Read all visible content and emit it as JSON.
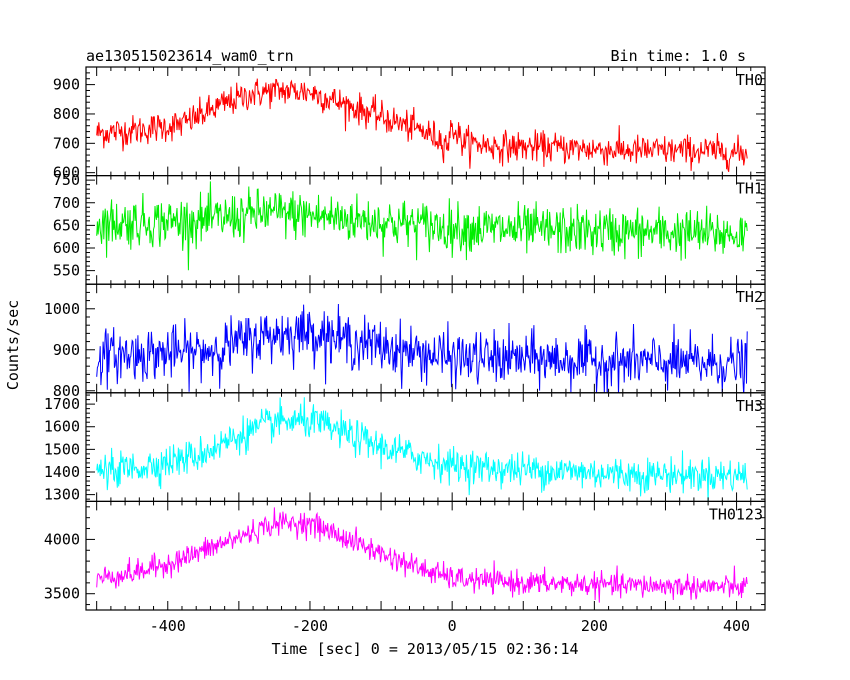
{
  "header": {
    "source_name": "ae130515023614_wam0_trn",
    "bin_time": "Bin time: 1.0 s"
  },
  "axes": {
    "xlabel": "Time [sec] 0 = 2013/05/15 02:36:14",
    "ylabel": "Counts/sec"
  },
  "chart_data": {
    "type": "line",
    "title": "ae130515023614_wam0_trn",
    "subtitle": "Bin time: 1.0 s",
    "xlabel": "Time [sec] 0 = 2013/05/15 02:36:14",
    "ylabel": "Counts/sec",
    "xlim": [
      -515,
      440
    ],
    "xticks": [
      -400,
      -200,
      0,
      200,
      400
    ],
    "x_data_range": [
      -500,
      415
    ],
    "bin_time_s": 1.0,
    "grid": false,
    "panels": [
      {
        "name": "TH0",
        "color": "#ff0000",
        "ylim": [
          590,
          960
        ],
        "yticks": [
          600,
          700,
          800,
          900
        ],
        "profile": [
          [
            -500,
            735
          ],
          [
            -440,
            745
          ],
          [
            -380,
            765
          ],
          [
            -320,
            835
          ],
          [
            -280,
            870
          ],
          [
            -240,
            880
          ],
          [
            -200,
            875
          ],
          [
            -160,
            840
          ],
          [
            -100,
            790
          ],
          [
            -40,
            740
          ],
          [
            -5,
            700
          ],
          [
            0,
            760
          ],
          [
            15,
            705
          ],
          [
            60,
            690
          ],
          [
            150,
            685
          ],
          [
            250,
            675
          ],
          [
            350,
            675
          ],
          [
            415,
            665
          ]
        ],
        "noise_sd": 26
      },
      {
        "name": "TH1",
        "color": "#00ee00",
        "ylim": [
          520,
          760
        ],
        "yticks": [
          550,
          600,
          650,
          700,
          750
        ],
        "profile": [
          [
            -500,
            655
          ],
          [
            -350,
            660
          ],
          [
            -260,
            678
          ],
          [
            -200,
            672
          ],
          [
            -100,
            658
          ],
          [
            0,
            645
          ],
          [
            100,
            640
          ],
          [
            250,
            635
          ],
          [
            415,
            630
          ]
        ],
        "noise_sd": 27
      },
      {
        "name": "TH2",
        "color": "#0000ff",
        "ylim": [
          795,
          1060
        ],
        "yticks": [
          800,
          900,
          1000
        ],
        "profile": [
          [
            -500,
            885
          ],
          [
            -350,
            895
          ],
          [
            -260,
            935
          ],
          [
            -200,
            945
          ],
          [
            -140,
            920
          ],
          [
            -60,
            895
          ],
          [
            0,
            880
          ],
          [
            100,
            878
          ],
          [
            250,
            870
          ],
          [
            415,
            865
          ]
        ],
        "noise_sd": 32
      },
      {
        "name": "TH3",
        "color": "#00ffff",
        "ylim": [
          1270,
          1750
        ],
        "yticks": [
          1300,
          1400,
          1500,
          1600,
          1700
        ],
        "profile": [
          [
            -500,
            1400
          ],
          [
            -440,
            1420
          ],
          [
            -360,
            1470
          ],
          [
            -300,
            1560
          ],
          [
            -250,
            1620
          ],
          [
            -200,
            1625
          ],
          [
            -150,
            1570
          ],
          [
            -100,
            1510
          ],
          [
            -40,
            1460
          ],
          [
            0,
            1430
          ],
          [
            60,
            1415
          ],
          [
            150,
            1405
          ],
          [
            250,
            1390
          ],
          [
            415,
            1385
          ]
        ],
        "noise_sd": 38
      },
      {
        "name": "TH0123",
        "color": "#ff00ff",
        "ylim": [
          3350,
          4350
        ],
        "yticks": [
          3500,
          4000
        ],
        "profile": [
          [
            -500,
            3640
          ],
          [
            -440,
            3700
          ],
          [
            -380,
            3820
          ],
          [
            -300,
            4020
          ],
          [
            -250,
            4150
          ],
          [
            -200,
            4150
          ],
          [
            -150,
            4010
          ],
          [
            -100,
            3870
          ],
          [
            -40,
            3720
          ],
          [
            0,
            3640
          ],
          [
            60,
            3610
          ],
          [
            150,
            3590
          ],
          [
            250,
            3575
          ],
          [
            415,
            3560
          ]
        ],
        "noise_sd": 55
      }
    ]
  }
}
